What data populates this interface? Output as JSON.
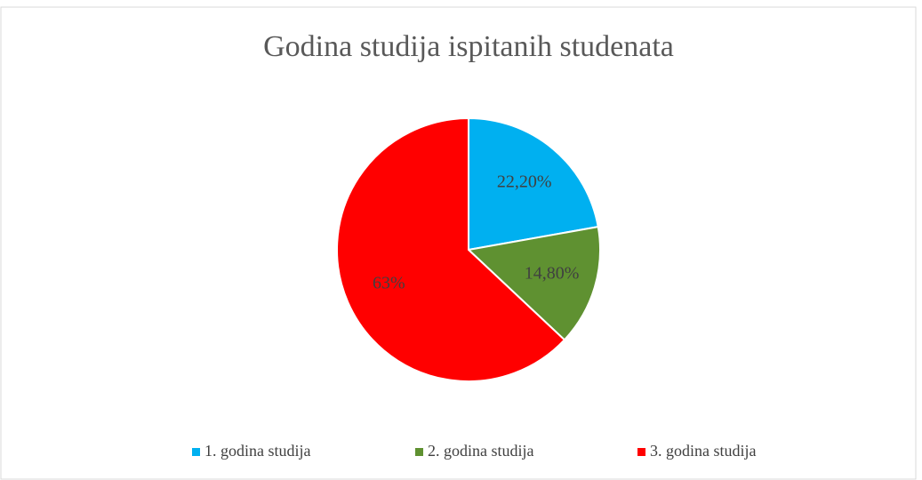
{
  "chart_data": {
    "type": "pie",
    "title": "Godina studija ispitanih studenata",
    "categories": [
      "1. godina studija",
      "2. godina studija",
      "3. godina studija"
    ],
    "values": [
      22.2,
      14.8,
      63
    ],
    "value_labels": [
      "22,20%",
      "14,80%",
      "63%"
    ],
    "colors": [
      "#00b0f0",
      "#5f9131",
      "#ff0000"
    ],
    "legend": "bottom"
  }
}
